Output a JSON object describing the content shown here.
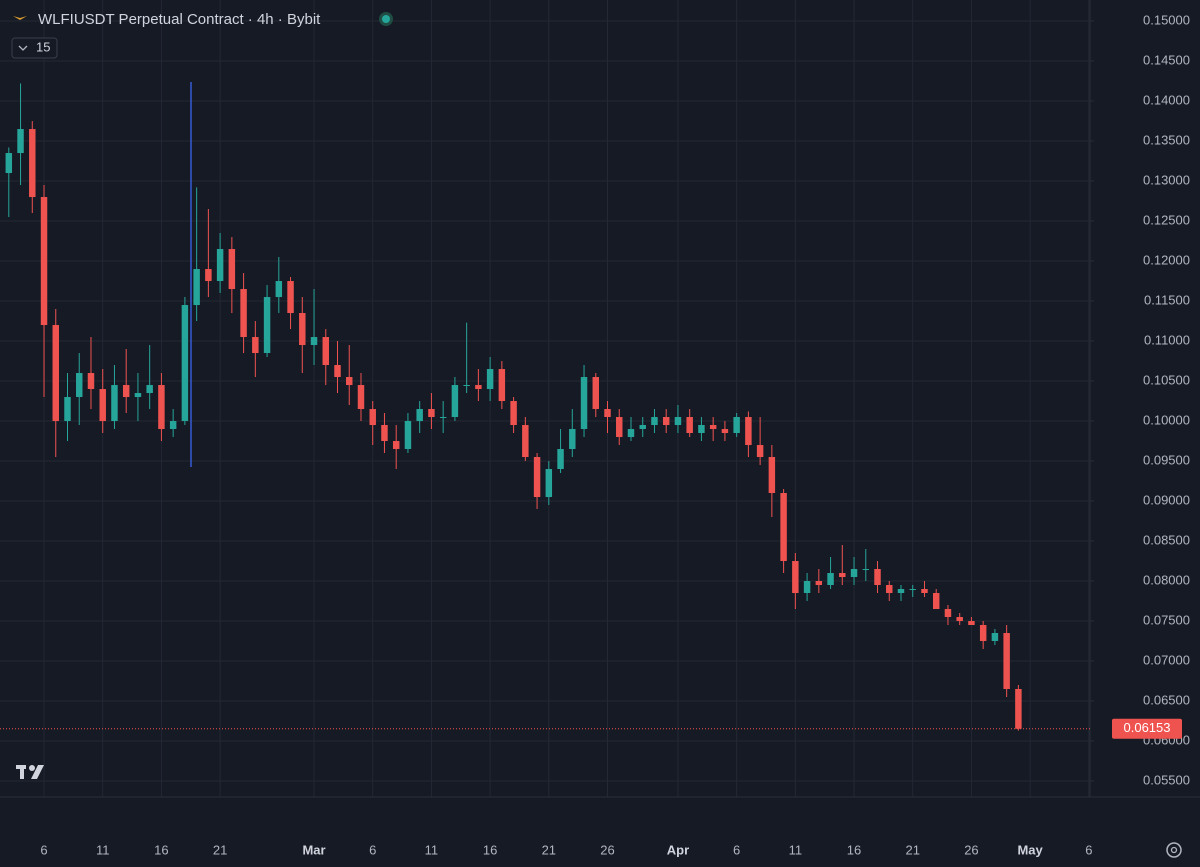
{
  "chart_data": {
    "type": "candlestick",
    "title": "WLFIUSDT Perpetual Contract · 4h · Bybit",
    "indicator_count": "15",
    "x": [
      3,
      4,
      5,
      6,
      7,
      8,
      9,
      10,
      11,
      12,
      13,
      14,
      15,
      16,
      17,
      18,
      19,
      20,
      21,
      22,
      23,
      24,
      25,
      26,
      27,
      28,
      29,
      30,
      31,
      32,
      33,
      34,
      35,
      36,
      37,
      38,
      39,
      40,
      41,
      42,
      43,
      44,
      45,
      46,
      47,
      48,
      49,
      50,
      51,
      52,
      53,
      54,
      55,
      56,
      57,
      58,
      59,
      60,
      61,
      62,
      63,
      64,
      65,
      66,
      67,
      68,
      69,
      70,
      71,
      72,
      73,
      74,
      75,
      76,
      77,
      78,
      79,
      80,
      81,
      82,
      83,
      84,
      85,
      86,
      87,
      88,
      89
    ],
    "open": [
      0.131,
      0.1335,
      0.1365,
      0.128,
      0.112,
      0.1,
      0.103,
      0.106,
      0.104,
      0.1,
      0.1045,
      0.103,
      0.1035,
      0.1045,
      0.099,
      0.1,
      0.1145,
      0.119,
      0.1175,
      0.1215,
      0.1165,
      0.1105,
      0.1085,
      0.1155,
      0.1175,
      0.1135,
      0.1095,
      0.1105,
      0.107,
      0.1055,
      0.1045,
      0.1015,
      0.0995,
      0.0975,
      0.0965,
      0.1,
      0.1015,
      0.1005,
      0.1005,
      0.1045,
      0.1045,
      0.104,
      0.1065,
      0.1025,
      0.0995,
      0.0955,
      0.0905,
      0.094,
      0.0965,
      0.099,
      0.1055,
      0.1015,
      0.1005,
      0.098,
      0.099,
      0.0995,
      0.1005,
      0.0995,
      0.1005,
      0.0985,
      0.0995,
      0.099,
      0.0985,
      0.1005,
      0.097,
      0.0955,
      0.091,
      0.0825,
      0.0785,
      0.08,
      0.0795,
      0.081,
      0.0805,
      0.0815,
      0.0815,
      0.0795,
      0.0785,
      0.079,
      0.079,
      0.0785,
      0.0765,
      0.0755,
      0.075,
      0.0745,
      0.0725,
      0.0735,
      0.0665
    ],
    "high": [
      0.1342,
      0.1422,
      0.1375,
      0.1295,
      0.114,
      0.106,
      0.1085,
      0.1105,
      0.1065,
      0.107,
      0.109,
      0.106,
      0.1095,
      0.106,
      0.1015,
      0.1155,
      0.1292,
      0.1265,
      0.1235,
      0.123,
      0.1185,
      0.1125,
      0.117,
      0.1205,
      0.118,
      0.1155,
      0.1165,
      0.1115,
      0.11,
      0.1095,
      0.106,
      0.1025,
      0.101,
      0.0995,
      0.101,
      0.1025,
      0.1035,
      0.1025,
      0.1055,
      0.1123,
      0.1065,
      0.108,
      0.1075,
      0.103,
      0.1005,
      0.096,
      0.095,
      0.099,
      0.1015,
      0.107,
      0.106,
      0.1025,
      0.1015,
      0.1005,
      0.1005,
      0.1015,
      0.1015,
      0.102,
      0.1015,
      0.1005,
      0.1005,
      0.1,
      0.101,
      0.1012,
      0.1005,
      0.097,
      0.0915,
      0.0835,
      0.081,
      0.0815,
      0.083,
      0.0845,
      0.083,
      0.084,
      0.0825,
      0.08,
      0.0795,
      0.0795,
      0.08,
      0.079,
      0.077,
      0.076,
      0.0755,
      0.075,
      0.074,
      0.0745,
      0.067
    ],
    "low": [
      0.1255,
      0.1295,
      0.126,
      0.103,
      0.0955,
      0.0975,
      0.0995,
      0.1015,
      0.0985,
      0.099,
      0.101,
      0.1,
      0.1015,
      0.0975,
      0.098,
      0.0995,
      0.1125,
      0.1155,
      0.116,
      0.1135,
      0.1085,
      0.1055,
      0.108,
      0.1135,
      0.1115,
      0.106,
      0.107,
      0.1045,
      0.1035,
      0.102,
      0.1,
      0.097,
      0.096,
      0.094,
      0.096,
      0.0985,
      0.099,
      0.0985,
      0.1,
      0.1035,
      0.1025,
      0.1025,
      0.1015,
      0.0985,
      0.095,
      0.089,
      0.0895,
      0.0935,
      0.0955,
      0.098,
      0.1005,
      0.0985,
      0.097,
      0.0975,
      0.098,
      0.0985,
      0.0985,
      0.0985,
      0.098,
      0.0975,
      0.0975,
      0.0975,
      0.098,
      0.0955,
      0.0945,
      0.088,
      0.081,
      0.0765,
      0.0775,
      0.0785,
      0.079,
      0.0795,
      0.0795,
      0.08,
      0.0785,
      0.0775,
      0.0775,
      0.078,
      0.078,
      0.0765,
      0.0745,
      0.0745,
      0.0745,
      0.0715,
      0.072,
      0.0655,
      0.0613
    ],
    "close": [
      0.1335,
      0.1365,
      0.128,
      0.112,
      0.1,
      0.103,
      0.106,
      0.104,
      0.1,
      0.1045,
      0.103,
      0.1035,
      0.1045,
      0.099,
      0.1,
      0.1145,
      0.119,
      0.1175,
      0.1215,
      0.1165,
      0.1105,
      0.1085,
      0.1155,
      0.1175,
      0.1135,
      0.1095,
      0.1105,
      0.107,
      0.1055,
      0.1045,
      0.1015,
      0.0995,
      0.0975,
      0.0965,
      0.1,
      0.1015,
      0.1005,
      0.1005,
      0.1045,
      0.1045,
      0.104,
      0.1065,
      0.1025,
      0.0995,
      0.0955,
      0.0905,
      0.094,
      0.0965,
      0.099,
      0.1055,
      0.1015,
      0.1005,
      0.098,
      0.099,
      0.0995,
      0.1005,
      0.0995,
      0.1005,
      0.0985,
      0.0995,
      0.099,
      0.0985,
      0.1005,
      0.097,
      0.0955,
      0.091,
      0.0825,
      0.0785,
      0.08,
      0.0795,
      0.081,
      0.0805,
      0.0815,
      0.0815,
      0.0795,
      0.0785,
      0.079,
      0.079,
      0.0785,
      0.0765,
      0.0755,
      0.075,
      0.0745,
      0.0725,
      0.0735,
      0.0665,
      0.06153
    ],
    "up_color": "#26a69a",
    "down_color": "#ef5350",
    "last_price": {
      "value": 0.06153,
      "label": "0.06153"
    },
    "xlim": [
      2.25,
      95.1
    ],
    "xticks": [
      6,
      11,
      16,
      21,
      {
        "value": 29,
        "label": "Mar"
      },
      {
        "value": 34,
        "label": "6"
      },
      {
        "value": 39,
        "label": "11"
      },
      {
        "value": 44,
        "label": "16"
      },
      {
        "value": 49,
        "label": "21"
      },
      {
        "value": 54,
        "label": "26"
      },
      {
        "value": 60,
        "label": "Apr"
      },
      {
        "value": 65,
        "label": "6"
      },
      {
        "value": 70,
        "label": "11"
      },
      {
        "value": 75,
        "label": "16"
      },
      {
        "value": 80,
        "label": "21"
      },
      {
        "value": 85,
        "label": "26"
      },
      {
        "value": 90,
        "label": "May"
      },
      {
        "value": 95,
        "label": "6"
      }
    ],
    "ylim": [
      0.053,
      0.15263
    ],
    "yticks": [
      {
        "value": 0.055,
        "label": "0.05500"
      },
      {
        "value": 0.06,
        "label": "0.06000"
      },
      {
        "value": 0.065,
        "label": "0.06500"
      },
      {
        "value": 0.07,
        "label": "0.07000"
      },
      {
        "value": 0.075,
        "label": "0.07500"
      },
      {
        "value": 0.08,
        "label": "0.08000"
      },
      {
        "value": 0.085,
        "label": "0.08500"
      },
      {
        "value": 0.09,
        "label": "0.09000"
      },
      {
        "value": 0.095,
        "label": "0.09500"
      },
      {
        "value": 0.1,
        "label": "0.10000"
      },
      {
        "value": 0.105,
        "label": "0.10500"
      },
      {
        "value": 0.11,
        "label": "0.11000"
      },
      {
        "value": 0.115,
        "label": "0.11500"
      },
      {
        "value": 0.12,
        "label": "0.12000"
      },
      {
        "value": 0.125,
        "label": "0.12500"
      },
      {
        "value": 0.13,
        "label": "0.13000"
      },
      {
        "value": 0.135,
        "label": "0.13500"
      },
      {
        "value": 0.14,
        "label": "0.14000"
      },
      {
        "value": 0.145,
        "label": "0.14500"
      },
      {
        "value": 0.15,
        "label": "0.15000"
      }
    ],
    "grid": true
  }
}
